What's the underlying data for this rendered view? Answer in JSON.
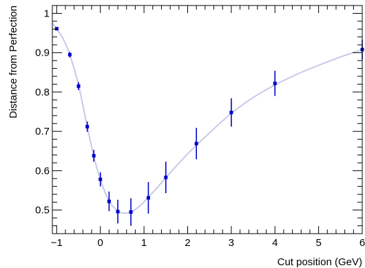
{
  "chart_data": {
    "type": "scatter",
    "title": "",
    "xlabel": "Cut position (GeV)",
    "ylabel": "Distance from Perfection",
    "xlim": [
      -1.1,
      6.0
    ],
    "ylim": [
      0.44,
      1.02
    ],
    "xticks": [
      -1,
      0,
      1,
      2,
      3,
      4,
      5,
      6
    ],
    "yticks": [
      0.5,
      0.6,
      0.7,
      0.8,
      0.9,
      1
    ],
    "ytick_labels": [
      "0.5",
      "0.6",
      "0.7",
      "0.8",
      "0.9",
      "1"
    ],
    "grid": false,
    "legend": "none",
    "series": [
      {
        "marker_color": "#0000cc",
        "points": [
          {
            "x": -1.0,
            "y": 0.961,
            "err": 0.004
          },
          {
            "x": -0.7,
            "y": 0.895,
            "err": 0.007
          },
          {
            "x": -0.5,
            "y": 0.815,
            "err": 0.01
          },
          {
            "x": -0.3,
            "y": 0.712,
            "err": 0.013
          },
          {
            "x": -0.15,
            "y": 0.638,
            "err": 0.015
          },
          {
            "x": 0.0,
            "y": 0.578,
            "err": 0.018
          },
          {
            "x": 0.2,
            "y": 0.522,
            "err": 0.025
          },
          {
            "x": 0.4,
            "y": 0.496,
            "err": 0.03
          },
          {
            "x": 0.7,
            "y": 0.495,
            "err": 0.035
          },
          {
            "x": 1.1,
            "y": 0.531,
            "err": 0.04
          },
          {
            "x": 1.5,
            "y": 0.583,
            "err": 0.04
          },
          {
            "x": 2.2,
            "y": 0.669,
            "err": 0.04
          },
          {
            "x": 3.0,
            "y": 0.748,
            "err": 0.036
          },
          {
            "x": 4.0,
            "y": 0.822,
            "err": 0.032
          },
          {
            "x": 6.0,
            "y": 0.908,
            "err": 0.025
          }
        ]
      },
      {
        "line_color": "#c8c8ec",
        "smooth_curve": [
          {
            "x": -1.1,
            "y": 0.975
          },
          {
            "x": -1.0,
            "y": 0.96
          },
          {
            "x": -0.85,
            "y": 0.935
          },
          {
            "x": -0.7,
            "y": 0.895
          },
          {
            "x": -0.5,
            "y": 0.818
          },
          {
            "x": -0.3,
            "y": 0.712
          },
          {
            "x": -0.15,
            "y": 0.637
          },
          {
            "x": 0.0,
            "y": 0.578
          },
          {
            "x": 0.2,
            "y": 0.523
          },
          {
            "x": 0.4,
            "y": 0.498
          },
          {
            "x": 0.55,
            "y": 0.492
          },
          {
            "x": 0.7,
            "y": 0.495
          },
          {
            "x": 0.9,
            "y": 0.51
          },
          {
            "x": 1.1,
            "y": 0.532
          },
          {
            "x": 1.5,
            "y": 0.582
          },
          {
            "x": 2.0,
            "y": 0.643
          },
          {
            "x": 2.5,
            "y": 0.696
          },
          {
            "x": 3.0,
            "y": 0.746
          },
          {
            "x": 3.5,
            "y": 0.786
          },
          {
            "x": 4.0,
            "y": 0.818
          },
          {
            "x": 4.5,
            "y": 0.845
          },
          {
            "x": 5.0,
            "y": 0.868
          },
          {
            "x": 5.5,
            "y": 0.889
          },
          {
            "x": 6.0,
            "y": 0.908
          }
        ]
      }
    ]
  }
}
